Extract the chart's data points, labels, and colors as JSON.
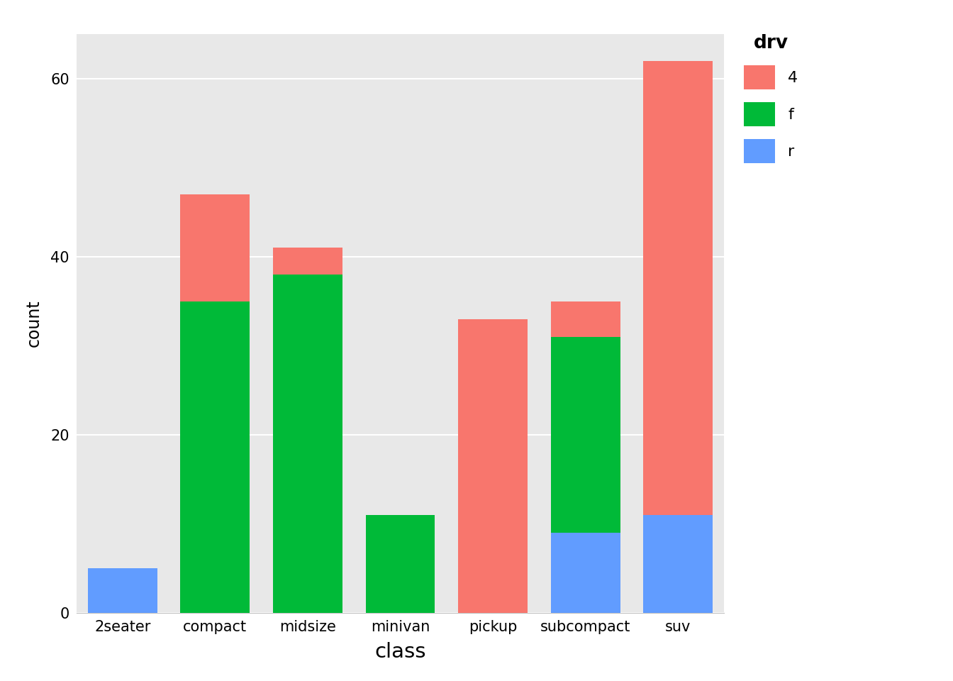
{
  "categories": [
    "2seater",
    "compact",
    "midsize",
    "minivan",
    "pickup",
    "subcompact",
    "suv"
  ],
  "drv_4": [
    0,
    12,
    3,
    0,
    33,
    4,
    51
  ],
  "drv_f": [
    0,
    35,
    38,
    11,
    0,
    22,
    0
  ],
  "drv_r": [
    5,
    0,
    0,
    0,
    0,
    9,
    11
  ],
  "color_4": "#F8766D",
  "color_f": "#00BA38",
  "color_r": "#619CFF",
  "fig_background": "#FFFFFF",
  "panel_background": "#E8E8E8",
  "grid_color": "#FFFFFF",
  "xlabel": "class",
  "ylabel": "count",
  "ylim": [
    0,
    65
  ],
  "yticks": [
    0,
    20,
    40,
    60
  ],
  "legend_title": "drv",
  "bar_width": 0.75
}
